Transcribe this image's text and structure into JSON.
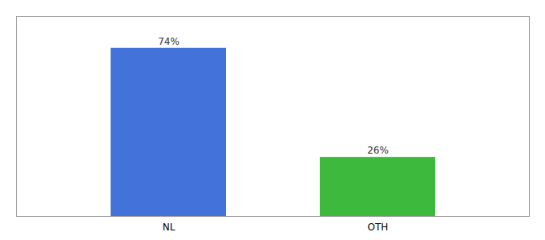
{
  "chart_data": {
    "type": "bar",
    "categories": [
      "NL",
      "OTH"
    ],
    "values": [
      74,
      26
    ],
    "value_labels": [
      "74%",
      "26%"
    ],
    "colors": [
      "#4472db",
      "#3dba3d"
    ],
    "ylim": [
      0,
      88
    ],
    "data_labels": true,
    "tick_labels": "x"
  }
}
